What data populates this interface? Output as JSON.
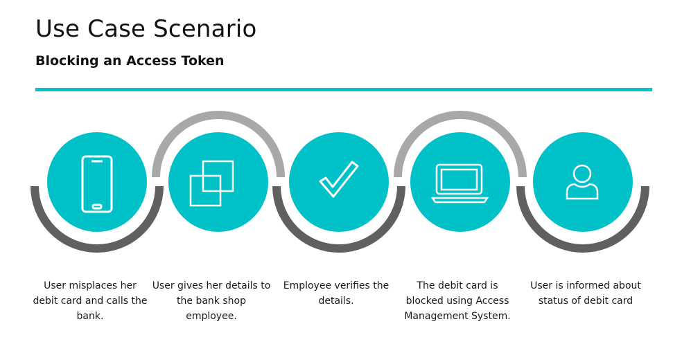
{
  "header": {
    "title": "Use Case Scenario",
    "subtitle": "Blocking an Access Token"
  },
  "colors": {
    "accent": "#00c0c8",
    "ring_dark": "#606060",
    "ring_light": "#a8a8a8",
    "icon": "#ffffff"
  },
  "steps": [
    {
      "icon": "smartphone-icon",
      "ring": "bottom",
      "caption": "User misplaces her debit card and calls the bank."
    },
    {
      "icon": "overlapping-squares-icon",
      "ring": "top",
      "caption": "User gives her details to the bank shop employee."
    },
    {
      "icon": "checkmark-icon",
      "ring": "bottom",
      "caption": "Employee verifies the details."
    },
    {
      "icon": "laptop-icon",
      "ring": "top",
      "caption": "The debit card is blocked using Access Management System."
    },
    {
      "icon": "user-icon",
      "ring": "bottom",
      "caption": "User is informed about status of debit card"
    }
  ]
}
